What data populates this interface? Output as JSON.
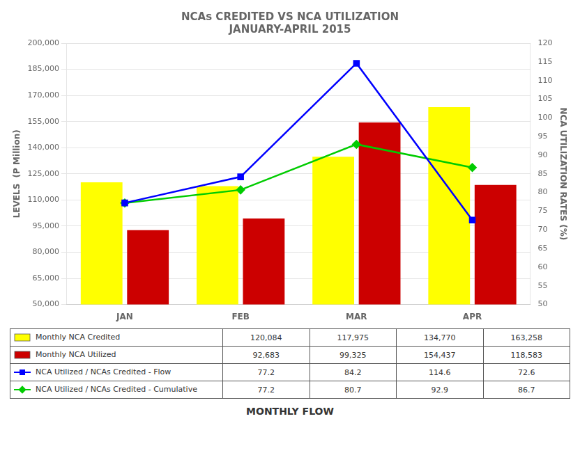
{
  "chart_data": {
    "type": "bar",
    "title": [
      "NCAs CREDITED VS NCA UTILIZATION",
      "JANUARY-APRIL 2015"
    ],
    "categories": [
      "JAN",
      "FEB",
      "MAR",
      "APR"
    ],
    "x_label": "MONTHLY FLOW",
    "y_label": "LEVELS  (P Million)",
    "y2_label": "NCA UTILIZATION RATES (%)",
    "series": [
      {
        "name": "Monthly NCA Credited",
        "type": "bar",
        "color": "#FFFF00",
        "values": [
          120084,
          117975,
          134770,
          163258
        ],
        "value_labels": [
          "120,084",
          "117,975",
          "134,770",
          "163,258"
        ]
      },
      {
        "name": "Monthly NCA Utilized",
        "type": "bar",
        "color": "#CC0000",
        "values": [
          92683,
          99325,
          154437,
          118583
        ],
        "value_labels": [
          "92,683",
          "99,325",
          "154,437",
          "118,583"
        ]
      },
      {
        "name": "NCA Utilized / NCAs Credited - Flow",
        "type": "line",
        "axis": "y2",
        "marker": "square",
        "color": "#0000FF",
        "values": [
          77.2,
          84.2,
          114.6,
          72.6
        ]
      },
      {
        "name": "NCA Utilized / NCAs Credited - Cumulative",
        "type": "line",
        "axis": "y2",
        "marker": "diamond",
        "color": "#00CC00",
        "values": [
          77.2,
          80.7,
          92.9,
          86.7
        ]
      }
    ],
    "ylim": [
      50000,
      200000
    ],
    "yticks": [
      {
        "value": 50000,
        "label": "50,000"
      },
      {
        "value": 65000,
        "label": "65,000"
      },
      {
        "value": 80000,
        "label": "80,000"
      },
      {
        "value": 95000,
        "label": "95,000"
      },
      {
        "value": 110000,
        "label": "110,000"
      },
      {
        "value": 125000,
        "label": "125,000"
      },
      {
        "value": 140000,
        "label": "140,000"
      },
      {
        "value": 155000,
        "label": "155,000"
      },
      {
        "value": 170000,
        "label": "170,000"
      },
      {
        "value": 185000,
        "label": "185,000"
      },
      {
        "value": 200000,
        "label": "200,000"
      }
    ],
    "y2lim": [
      50,
      120
    ],
    "y2ticks": [
      50,
      55,
      60,
      65,
      70,
      75,
      80,
      85,
      90,
      95,
      100,
      105,
      110,
      115,
      120
    ],
    "grid": true
  }
}
